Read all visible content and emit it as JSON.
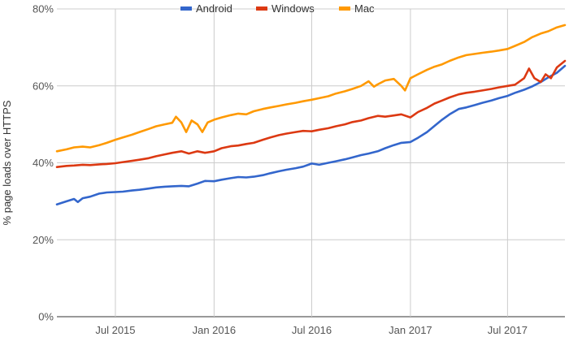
{
  "chart_data": {
    "type": "line",
    "title": "",
    "xlabel": "",
    "ylabel": "% page loads over HTTPS",
    "y_ticks": [
      "0%",
      "20%",
      "40%",
      "60%",
      "80%"
    ],
    "x_ticks": [
      {
        "date": "2015-07-01",
        "label": "Jul 2015"
      },
      {
        "date": "2016-01-01",
        "label": "Jan 2016"
      },
      {
        "date": "2016-07-01",
        "label": "Jul 2016"
      },
      {
        "date": "2017-01-01",
        "label": "Jan 2017"
      },
      {
        "date": "2017-07-01",
        "label": "Jul 2017"
      }
    ],
    "xlim": [
      "2015-03-14",
      "2017-10-16"
    ],
    "ylim": [
      0,
      80
    ],
    "grid": true,
    "legend_position": "top",
    "series": [
      {
        "name": "Android",
        "color": "#3366cc",
        "points": [
          [
            "2015-03-14",
            29.2
          ],
          [
            "2015-04-01",
            30.0
          ],
          [
            "2015-04-15",
            30.6
          ],
          [
            "2015-04-22",
            29.8
          ],
          [
            "2015-05-01",
            30.8
          ],
          [
            "2015-05-15",
            31.2
          ],
          [
            "2015-06-01",
            32.0
          ],
          [
            "2015-06-15",
            32.3
          ],
          [
            "2015-07-01",
            32.4
          ],
          [
            "2015-07-15",
            32.5
          ],
          [
            "2015-08-01",
            32.8
          ],
          [
            "2015-08-15",
            33.0
          ],
          [
            "2015-09-01",
            33.3
          ],
          [
            "2015-09-15",
            33.6
          ],
          [
            "2015-10-01",
            33.8
          ],
          [
            "2015-10-15",
            33.9
          ],
          [
            "2015-11-01",
            34.0
          ],
          [
            "2015-11-15",
            33.9
          ],
          [
            "2015-12-01",
            34.6
          ],
          [
            "2015-12-15",
            35.3
          ],
          [
            "2016-01-01",
            35.2
          ],
          [
            "2016-01-15",
            35.6
          ],
          [
            "2016-02-01",
            36.0
          ],
          [
            "2016-02-15",
            36.3
          ],
          [
            "2016-03-01",
            36.2
          ],
          [
            "2016-03-15",
            36.4
          ],
          [
            "2016-04-01",
            36.8
          ],
          [
            "2016-04-15",
            37.3
          ],
          [
            "2016-05-01",
            37.8
          ],
          [
            "2016-05-15",
            38.2
          ],
          [
            "2016-06-01",
            38.6
          ],
          [
            "2016-06-15",
            39.0
          ],
          [
            "2016-07-01",
            39.8
          ],
          [
            "2016-07-15",
            39.5
          ],
          [
            "2016-08-01",
            40.0
          ],
          [
            "2016-08-15",
            40.4
          ],
          [
            "2016-09-01",
            40.9
          ],
          [
            "2016-09-15",
            41.4
          ],
          [
            "2016-10-01",
            42.0
          ],
          [
            "2016-10-15",
            42.4
          ],
          [
            "2016-11-01",
            43.0
          ],
          [
            "2016-11-15",
            43.8
          ],
          [
            "2016-12-01",
            44.6
          ],
          [
            "2016-12-15",
            45.2
          ],
          [
            "2017-01-01",
            45.4
          ],
          [
            "2017-01-15",
            46.5
          ],
          [
            "2017-02-01",
            48.0
          ],
          [
            "2017-02-15",
            49.6
          ],
          [
            "2017-03-01",
            51.2
          ],
          [
            "2017-03-15",
            52.6
          ],
          [
            "2017-04-01",
            54.0
          ],
          [
            "2017-04-15",
            54.4
          ],
          [
            "2017-05-01",
            55.0
          ],
          [
            "2017-05-15",
            55.6
          ],
          [
            "2017-06-01",
            56.2
          ],
          [
            "2017-06-15",
            56.8
          ],
          [
            "2017-07-01",
            57.4
          ],
          [
            "2017-07-15",
            58.2
          ],
          [
            "2017-08-01",
            59.0
          ],
          [
            "2017-08-15",
            59.8
          ],
          [
            "2017-09-01",
            61.0
          ],
          [
            "2017-09-15",
            62.2
          ],
          [
            "2017-10-01",
            63.4
          ],
          [
            "2017-10-16",
            65.2
          ]
        ]
      },
      {
        "name": "Windows",
        "color": "#dc3912",
        "points": [
          [
            "2015-03-14",
            38.9
          ],
          [
            "2015-04-01",
            39.2
          ],
          [
            "2015-04-15",
            39.3
          ],
          [
            "2015-05-01",
            39.5
          ],
          [
            "2015-05-15",
            39.4
          ],
          [
            "2015-06-01",
            39.6
          ],
          [
            "2015-06-15",
            39.7
          ],
          [
            "2015-07-01",
            39.9
          ],
          [
            "2015-07-15",
            40.2
          ],
          [
            "2015-08-01",
            40.5
          ],
          [
            "2015-08-15",
            40.8
          ],
          [
            "2015-09-01",
            41.2
          ],
          [
            "2015-09-15",
            41.7
          ],
          [
            "2015-10-01",
            42.2
          ],
          [
            "2015-10-15",
            42.6
          ],
          [
            "2015-11-01",
            43.0
          ],
          [
            "2015-11-15",
            42.4
          ],
          [
            "2015-12-01",
            43.0
          ],
          [
            "2015-12-15",
            42.6
          ],
          [
            "2016-01-01",
            43.0
          ],
          [
            "2016-01-15",
            43.8
          ],
          [
            "2016-02-01",
            44.3
          ],
          [
            "2016-02-15",
            44.5
          ],
          [
            "2016-03-01",
            44.9
          ],
          [
            "2016-03-15",
            45.2
          ],
          [
            "2016-04-01",
            46.0
          ],
          [
            "2016-04-15",
            46.6
          ],
          [
            "2016-05-01",
            47.2
          ],
          [
            "2016-05-15",
            47.6
          ],
          [
            "2016-06-01",
            48.0
          ],
          [
            "2016-06-15",
            48.3
          ],
          [
            "2016-07-01",
            48.2
          ],
          [
            "2016-07-15",
            48.6
          ],
          [
            "2016-08-01",
            49.0
          ],
          [
            "2016-08-15",
            49.5
          ],
          [
            "2016-09-01",
            50.0
          ],
          [
            "2016-09-15",
            50.6
          ],
          [
            "2016-10-01",
            51.0
          ],
          [
            "2016-10-15",
            51.6
          ],
          [
            "2016-11-01",
            52.2
          ],
          [
            "2016-11-15",
            52.0
          ],
          [
            "2016-12-01",
            52.3
          ],
          [
            "2016-12-15",
            52.6
          ],
          [
            "2017-01-01",
            51.8
          ],
          [
            "2017-01-15",
            53.2
          ],
          [
            "2017-02-01",
            54.3
          ],
          [
            "2017-02-15",
            55.4
          ],
          [
            "2017-03-01",
            56.2
          ],
          [
            "2017-03-15",
            57.0
          ],
          [
            "2017-04-01",
            57.8
          ],
          [
            "2017-04-15",
            58.2
          ],
          [
            "2017-05-01",
            58.5
          ],
          [
            "2017-05-15",
            58.8
          ],
          [
            "2017-06-01",
            59.2
          ],
          [
            "2017-06-15",
            59.6
          ],
          [
            "2017-07-01",
            60.0
          ],
          [
            "2017-07-15",
            60.3
          ],
          [
            "2017-08-01",
            62.0
          ],
          [
            "2017-08-10",
            64.5
          ],
          [
            "2017-08-20",
            62.0
          ],
          [
            "2017-09-01",
            61.0
          ],
          [
            "2017-09-10",
            63.0
          ],
          [
            "2017-09-20",
            62.0
          ],
          [
            "2017-10-01",
            64.8
          ],
          [
            "2017-10-16",
            66.5
          ]
        ]
      },
      {
        "name": "Mac",
        "color": "#ff9900",
        "points": [
          [
            "2015-03-14",
            43.0
          ],
          [
            "2015-04-01",
            43.5
          ],
          [
            "2015-04-15",
            44.0
          ],
          [
            "2015-05-01",
            44.2
          ],
          [
            "2015-05-15",
            44.0
          ],
          [
            "2015-06-01",
            44.6
          ],
          [
            "2015-06-15",
            45.2
          ],
          [
            "2015-07-01",
            46.0
          ],
          [
            "2015-07-15",
            46.6
          ],
          [
            "2015-08-01",
            47.3
          ],
          [
            "2015-08-15",
            48.0
          ],
          [
            "2015-09-01",
            48.8
          ],
          [
            "2015-09-15",
            49.5
          ],
          [
            "2015-10-01",
            50.0
          ],
          [
            "2015-10-15",
            50.4
          ],
          [
            "2015-10-22",
            52.0
          ],
          [
            "2015-11-01",
            50.5
          ],
          [
            "2015-11-10",
            48.0
          ],
          [
            "2015-11-20",
            51.0
          ],
          [
            "2015-12-01",
            50.0
          ],
          [
            "2015-12-10",
            48.0
          ],
          [
            "2015-12-20",
            50.5
          ],
          [
            "2016-01-01",
            51.2
          ],
          [
            "2016-01-15",
            51.8
          ],
          [
            "2016-02-01",
            52.4
          ],
          [
            "2016-02-15",
            52.8
          ],
          [
            "2016-03-01",
            52.6
          ],
          [
            "2016-03-15",
            53.4
          ],
          [
            "2016-04-01",
            54.0
          ],
          [
            "2016-04-15",
            54.4
          ],
          [
            "2016-05-01",
            54.8
          ],
          [
            "2016-05-15",
            55.2
          ],
          [
            "2016-06-01",
            55.6
          ],
          [
            "2016-06-15",
            56.0
          ],
          [
            "2016-07-01",
            56.4
          ],
          [
            "2016-07-15",
            56.8
          ],
          [
            "2016-08-01",
            57.3
          ],
          [
            "2016-08-15",
            58.0
          ],
          [
            "2016-09-01",
            58.6
          ],
          [
            "2016-09-15",
            59.2
          ],
          [
            "2016-10-01",
            60.0
          ],
          [
            "2016-10-15",
            61.2
          ],
          [
            "2016-10-25",
            59.8
          ],
          [
            "2016-11-01",
            60.4
          ],
          [
            "2016-11-15",
            61.4
          ],
          [
            "2016-12-01",
            61.8
          ],
          [
            "2016-12-15",
            60.0
          ],
          [
            "2016-12-22",
            58.8
          ],
          [
            "2017-01-01",
            62.0
          ],
          [
            "2017-01-15",
            63.0
          ],
          [
            "2017-02-01",
            64.2
          ],
          [
            "2017-02-15",
            65.0
          ],
          [
            "2017-03-01",
            65.6
          ],
          [
            "2017-03-15",
            66.5
          ],
          [
            "2017-04-01",
            67.4
          ],
          [
            "2017-04-15",
            68.0
          ],
          [
            "2017-05-01",
            68.3
          ],
          [
            "2017-05-15",
            68.6
          ],
          [
            "2017-06-01",
            68.9
          ],
          [
            "2017-06-15",
            69.2
          ],
          [
            "2017-07-01",
            69.6
          ],
          [
            "2017-07-15",
            70.4
          ],
          [
            "2017-08-01",
            71.4
          ],
          [
            "2017-08-15",
            72.6
          ],
          [
            "2017-09-01",
            73.6
          ],
          [
            "2017-09-15",
            74.2
          ],
          [
            "2017-10-01",
            75.2
          ],
          [
            "2017-10-16",
            75.8
          ]
        ]
      }
    ]
  }
}
